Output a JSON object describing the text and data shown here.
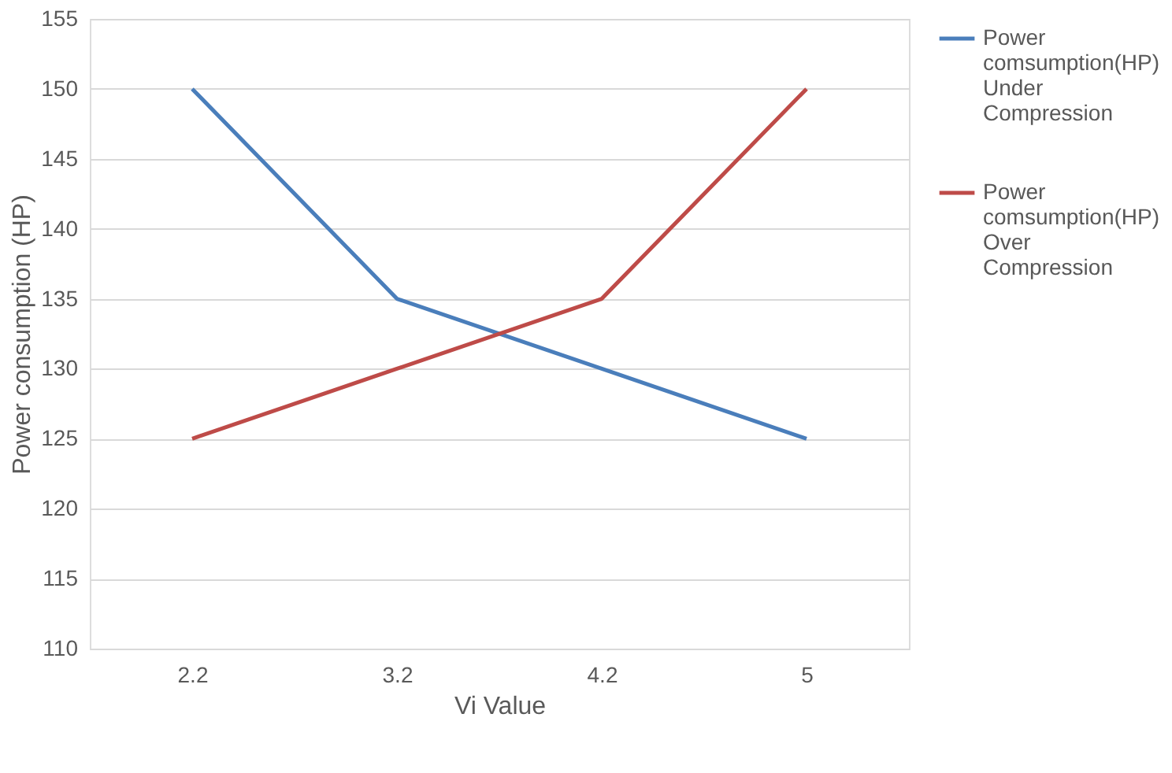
{
  "chart_data": {
    "type": "line",
    "xlabel": "Vi Value",
    "ylabel": "Power consumption  (HP)",
    "categories": [
      "2.2",
      "3.2",
      "4.2",
      "5"
    ],
    "series": [
      {
        "name": "Power comsumption(HP) Under Compression",
        "color": "#4a7ebb",
        "values": [
          150,
          135,
          130,
          125
        ]
      },
      {
        "name": "Power comsumption(HP) Over Compression",
        "color": "#be4b48",
        "values": [
          125,
          130,
          135,
          150
        ]
      }
    ],
    "ylim": [
      110,
      155
    ],
    "yticks": [
      110,
      115,
      120,
      125,
      130,
      135,
      140,
      145,
      150,
      155
    ],
    "grid": "y",
    "legend": "right",
    "marker": "none",
    "line_style": "solid"
  }
}
